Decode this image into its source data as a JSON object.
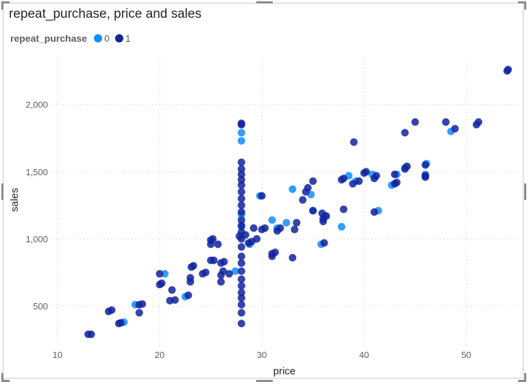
{
  "chart_data": {
    "type": "scatter",
    "title": "repeat_purchase, price and sales",
    "xlabel": "price",
    "ylabel": "sales",
    "xlim": [
      9,
      55
    ],
    "ylim": [
      200,
      2350
    ],
    "x_ticks": [
      10,
      20,
      30,
      40,
      50
    ],
    "y_ticks": [
      500,
      1000,
      1500,
      2000
    ],
    "y_tick_labels": [
      "500",
      "1,000",
      "1,500",
      "2,000"
    ],
    "grid": true,
    "legend": {
      "title": "repeat_purchase",
      "placement": "top-left",
      "entries": [
        {
          "label": "0",
          "color": "#118dff"
        },
        {
          "label": "1",
          "color": "#12239e"
        }
      ]
    },
    "series": [
      {
        "name": "0",
        "color": "#118dff",
        "points": [
          [
            28,
            1790
          ],
          [
            28,
            1730
          ],
          [
            29.8,
            1320
          ],
          [
            33,
            1370
          ],
          [
            31,
            1140
          ],
          [
            31.5,
            1080
          ],
          [
            37.8,
            1090
          ],
          [
            35.8,
            960
          ],
          [
            38.5,
            1470
          ],
          [
            39.2,
            1430
          ],
          [
            41.4,
            1210
          ],
          [
            43.2,
            1480
          ],
          [
            46,
            1480
          ],
          [
            46.1,
            1560
          ],
          [
            48.5,
            1800
          ],
          [
            35,
            1210
          ],
          [
            34.8,
            1330
          ],
          [
            16.5,
            380
          ],
          [
            17.6,
            510
          ],
          [
            20.5,
            740
          ],
          [
            22.5,
            570
          ],
          [
            27.4,
            760
          ],
          [
            28,
            1090
          ],
          [
            28,
            1180
          ],
          [
            28.8,
            960
          ],
          [
            32.4,
            1120
          ],
          [
            36.2,
            1170
          ],
          [
            40.8,
            1480
          ],
          [
            42.7,
            1400
          ],
          [
            44,
            1530
          ]
        ]
      },
      {
        "name": "1",
        "color": "#12239e",
        "points": [
          [
            13,
            290
          ],
          [
            13.3,
            290
          ],
          [
            15,
            460
          ],
          [
            15.3,
            470
          ],
          [
            16,
            370
          ],
          [
            16.2,
            375
          ],
          [
            18,
            450
          ],
          [
            18,
            510
          ],
          [
            18.3,
            515
          ],
          [
            20,
            660
          ],
          [
            20.2,
            670
          ],
          [
            20,
            740
          ],
          [
            21,
            540
          ],
          [
            21.2,
            620
          ],
          [
            21.5,
            545
          ],
          [
            22.8,
            580
          ],
          [
            23,
            680
          ],
          [
            23,
            710
          ],
          [
            23.1,
            790
          ],
          [
            23.3,
            800
          ],
          [
            24.2,
            740
          ],
          [
            24.5,
            750
          ],
          [
            25,
            960
          ],
          [
            25,
            990
          ],
          [
            25.2,
            1000
          ],
          [
            25,
            840
          ],
          [
            25.3,
            840
          ],
          [
            25.7,
            960
          ],
          [
            26,
            680
          ],
          [
            26,
            730
          ],
          [
            26.2,
            760
          ],
          [
            26,
            820
          ],
          [
            26.3,
            830
          ],
          [
            26.8,
            740
          ],
          [
            27.8,
            1020
          ],
          [
            28,
            370
          ],
          [
            28,
            450
          ],
          [
            28,
            510
          ],
          [
            28,
            560
          ],
          [
            28,
            600
          ],
          [
            28,
            650
          ],
          [
            28,
            700
          ],
          [
            28,
            760
          ],
          [
            28,
            820
          ],
          [
            28,
            870
          ],
          [
            28,
            940
          ],
          [
            28,
            1000
          ],
          [
            28,
            1050
          ],
          [
            28,
            1100
          ],
          [
            28,
            1140
          ],
          [
            28,
            1200
          ],
          [
            28,
            1250
          ],
          [
            28,
            1300
          ],
          [
            28,
            1350
          ],
          [
            28,
            1400
          ],
          [
            28,
            1440
          ],
          [
            28,
            1480
          ],
          [
            28,
            1520
          ],
          [
            28,
            1570
          ],
          [
            28,
            1850
          ],
          [
            28,
            1860
          ],
          [
            28.4,
            1030
          ],
          [
            28.7,
            970
          ],
          [
            29,
            980
          ],
          [
            29.2,
            1080
          ],
          [
            29.5,
            1000
          ],
          [
            30,
            1320
          ],
          [
            30,
            1070
          ],
          [
            30.3,
            1080
          ],
          [
            31,
            870
          ],
          [
            31,
            890
          ],
          [
            31.3,
            900
          ],
          [
            31.5,
            1060
          ],
          [
            31.8,
            1080
          ],
          [
            33,
            860
          ],
          [
            33.2,
            1070
          ],
          [
            33.4,
            1120
          ],
          [
            34,
            1290
          ],
          [
            34.3,
            1350
          ],
          [
            34.5,
            1380
          ],
          [
            35,
            1210
          ],
          [
            35,
            1430
          ],
          [
            35.9,
            1190
          ],
          [
            36,
            1130
          ],
          [
            36,
            1150
          ],
          [
            36.1,
            970
          ],
          [
            36.3,
            1170
          ],
          [
            37.8,
            1440
          ],
          [
            38,
            1220
          ],
          [
            38,
            1450
          ],
          [
            38.9,
            1410
          ],
          [
            39,
            1720
          ],
          [
            39.5,
            1430
          ],
          [
            40,
            1490
          ],
          [
            40.2,
            1500
          ],
          [
            41,
            1200
          ],
          [
            41,
            1450
          ],
          [
            41.2,
            1470
          ],
          [
            43,
            1410
          ],
          [
            43.2,
            1420
          ],
          [
            43,
            1480
          ],
          [
            44,
            1790
          ],
          [
            44,
            1520
          ],
          [
            44.2,
            1540
          ],
          [
            45,
            1870
          ],
          [
            46,
            1460
          ],
          [
            46,
            1470
          ],
          [
            46,
            1550
          ],
          [
            48,
            1870
          ],
          [
            48.9,
            1820
          ],
          [
            51,
            1850
          ],
          [
            51.2,
            1870
          ],
          [
            54,
            2250
          ],
          [
            54.1,
            2260
          ]
        ]
      }
    ]
  }
}
